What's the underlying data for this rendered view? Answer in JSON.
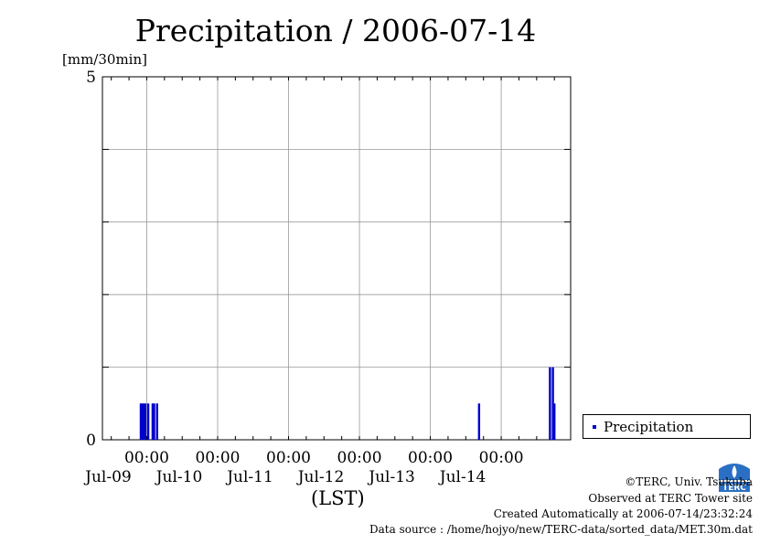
{
  "chart_data": {
    "type": "bar",
    "title": "Precipitation / 2006-07-14",
    "ylabel": "[mm/30min]",
    "xlabel": "(LST)",
    "ylim": [
      0,
      5
    ],
    "y_ticks": [
      0,
      5
    ],
    "x_range": [
      "2006-07-08T09:00",
      "2006-07-14T23:30"
    ],
    "x_ticks": [
      {
        "time": "2006-07-09T00:00",
        "label": "00:00",
        "date": "Jul-09"
      },
      {
        "time": "2006-07-10T00:00",
        "label": "00:00",
        "date": "Jul-10"
      },
      {
        "time": "2006-07-11T00:00",
        "label": "00:00",
        "date": "Jul-11"
      },
      {
        "time": "2006-07-12T00:00",
        "label": "00:00",
        "date": "Jul-12"
      },
      {
        "time": "2006-07-13T00:00",
        "label": "00:00",
        "date": "Jul-13"
      },
      {
        "time": "2006-07-14T00:00",
        "label": "00:00",
        "date": "Jul-14"
      }
    ],
    "grid": true,
    "legend_position": "right",
    "series": [
      {
        "name": "Precipitation",
        "color": "#0000cc",
        "points": [
          {
            "time": "2006-07-08T22:00",
            "value": 0.5
          },
          {
            "time": "2006-07-08T22:30",
            "value": 0.5
          },
          {
            "time": "2006-07-08T23:00",
            "value": 0.5
          },
          {
            "time": "2006-07-08T23:30",
            "value": 0.5
          },
          {
            "time": "2006-07-09T00:30",
            "value": 0.5
          },
          {
            "time": "2006-07-09T02:00",
            "value": 0.5
          },
          {
            "time": "2006-07-09T02:30",
            "value": 0.5
          },
          {
            "time": "2006-07-09T03:30",
            "value": 0.5
          },
          {
            "time": "2006-07-13T16:30",
            "value": 0.5
          },
          {
            "time": "2006-07-14T16:30",
            "value": 1.0
          },
          {
            "time": "2006-07-14T17:30",
            "value": 1.0
          },
          {
            "time": "2006-07-14T18:00",
            "value": 0.5
          }
        ]
      }
    ]
  },
  "credits": {
    "copyright": "©TERC, Univ. Tsukuba",
    "observed": "Observed at TERC Tower site",
    "created": "Created Automatically at 2006-07-14/23:32:24",
    "source": "Data source : /home/hojyo/new/TERC-data/sorted_data/MET.30m.dat"
  },
  "logo_text": "TERC"
}
